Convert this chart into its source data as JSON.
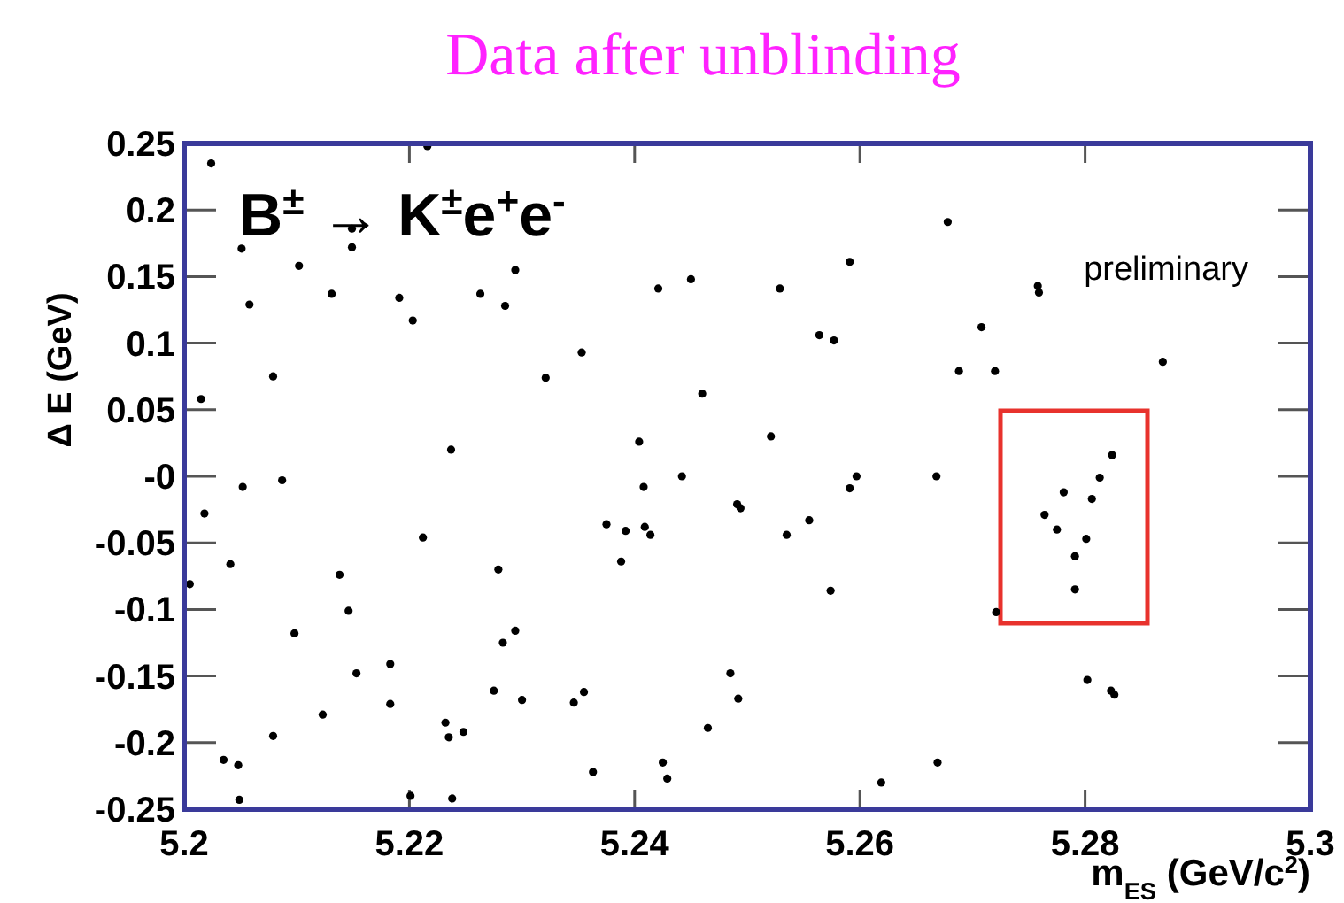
{
  "chart_data": {
    "type": "scatter",
    "title": "Data after unblinding",
    "xlabel": "m$_{ES}$ (GeV/c$^{2}$)",
    "ylabel": "Δ E (GeV)",
    "annotations": [
      "B$^{±}$ → K$^{±}$e$^{+}$e$^{-}$",
      "preliminary"
    ],
    "xlim": [
      5.2,
      5.3
    ],
    "xticks": [
      5.2,
      5.22,
      5.24,
      5.26,
      5.28,
      5.3
    ],
    "ylim": [
      -0.25,
      0.25
    ],
    "yticks": [
      -0.25,
      -0.2,
      -0.15,
      -0.1,
      -0.05,
      {
        "value": 0,
        "label": "-0"
      },
      0.05,
      0.1,
      0.15,
      0.2,
      0.25
    ],
    "grid": false,
    "marker": "circle",
    "series": [
      {
        "color": "#000000",
        "x": [
          5.2024,
          5.2216,
          5.2051,
          5.2149,
          5.2149,
          5.2102,
          5.2058,
          5.2131,
          5.2191,
          5.2203,
          5.2263,
          5.2285,
          5.2294,
          5.2421,
          5.245,
          5.2079,
          5.2321,
          5.2353,
          5.246,
          5.2015,
          5.2237,
          5.2404,
          5.2442,
          5.2678,
          5.2591,
          5.2529,
          5.2758,
          5.2759,
          5.2708,
          5.2564,
          5.2577,
          5.2869,
          5.2688,
          5.272,
          5.2521,
          5.2824,
          5.2052,
          5.2087,
          5.2018,
          5.2005,
          5.2041,
          5.2212,
          5.2138,
          5.2146,
          5.2098,
          5.2153,
          5.2183,
          5.2183,
          5.2123,
          5.2079,
          5.2035,
          5.2048,
          5.2049,
          5.2201,
          5.2238,
          5.2232,
          5.2235,
          5.2248,
          5.2275,
          5.23,
          5.2283,
          5.2294,
          5.2279,
          5.2346,
          5.2355,
          5.2363,
          5.2375,
          5.2392,
          5.2388,
          5.2408,
          5.2409,
          5.2414,
          5.2425,
          5.2429,
          5.2465,
          5.2485,
          5.2492,
          5.2491,
          5.2494,
          5.2597,
          5.2591,
          5.2668,
          5.2555,
          5.2535,
          5.2574,
          5.2721,
          5.2813,
          5.2781,
          5.2806,
          5.2764,
          5.2775,
          5.2801,
          5.2791,
          5.2791,
          5.2802,
          5.2823,
          5.2826,
          5.2669,
          5.2619
        ],
        "values": [
          0.235,
          0.248,
          0.171,
          0.172,
          0.186,
          0.158,
          0.129,
          0.137,
          0.134,
          0.117,
          0.137,
          0.128,
          0.155,
          0.141,
          0.148,
          0.075,
          0.074,
          0.093,
          0.062,
          0.058,
          0.02,
          0.026,
          0.0,
          0.191,
          0.161,
          0.141,
          0.143,
          0.138,
          0.112,
          0.106,
          0.102,
          0.086,
          0.079,
          0.079,
          0.03,
          0.016,
          -0.008,
          -0.003,
          -0.028,
          -0.081,
          -0.066,
          -0.046,
          -0.074,
          -0.101,
          -0.118,
          -0.148,
          -0.141,
          -0.171,
          -0.179,
          -0.195,
          -0.213,
          -0.217,
          -0.243,
          -0.24,
          -0.242,
          -0.185,
          -0.196,
          -0.192,
          -0.161,
          -0.168,
          -0.125,
          -0.116,
          -0.07,
          -0.17,
          -0.162,
          -0.222,
          -0.036,
          -0.041,
          -0.064,
          -0.008,
          -0.038,
          -0.044,
          -0.215,
          -0.227,
          -0.189,
          -0.148,
          -0.167,
          -0.021,
          -0.024,
          0.0,
          -0.009,
          0.0,
          -0.033,
          -0.044,
          -0.086,
          -0.102,
          -0.001,
          -0.012,
          -0.017,
          -0.029,
          -0.04,
          -0.047,
          -0.06,
          -0.085,
          -0.153,
          -0.161,
          -0.164,
          -0.215,
          -0.23
        ]
      }
    ]
  }
}
